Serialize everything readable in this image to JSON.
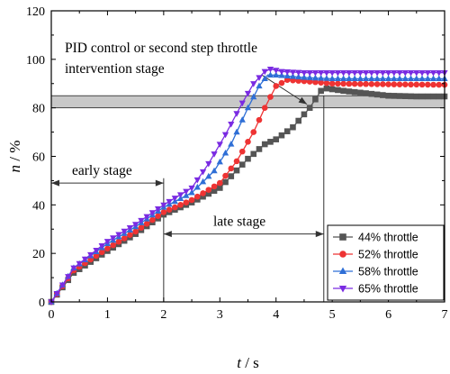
{
  "chart_data": {
    "type": "line",
    "xlabel": {
      "var": "t",
      "unit": " / s"
    },
    "ylabel": {
      "var": "n",
      "unit": " / %"
    },
    "xlim": [
      0,
      7
    ],
    "ylim": [
      0,
      120
    ],
    "xticks": [
      0,
      1,
      2,
      3,
      4,
      5,
      6,
      7
    ],
    "yticks": [
      0,
      20,
      40,
      60,
      80,
      100,
      120
    ],
    "grid": false,
    "legend_position": "bottom-right",
    "band": {
      "y0": 80,
      "y1": 85,
      "color": "#c8c8c8"
    },
    "annotations": {
      "pid_line1": "PID control or second step throttle",
      "pid_line2": "intervention stage",
      "early": "early stage",
      "late": "late stage"
    },
    "stage_markers": {
      "early_end": 2.0,
      "late_end": 4.85
    },
    "series": [
      {
        "name": "44% throttle",
        "color": "#555555",
        "marker": "square",
        "x": [
          0,
          0.4,
          1.0,
          1.5,
          2.0,
          2.5,
          3.0,
          3.5,
          3.8,
          4.0,
          4.3,
          4.6,
          4.8,
          4.9,
          5.2,
          5.6,
          6.0,
          6.5,
          7.0
        ],
        "y": [
          0,
          12,
          21,
          28,
          36,
          41,
          47,
          59,
          65,
          67,
          72,
          80,
          87,
          88,
          87,
          86,
          85,
          84.7,
          84.7
        ]
      },
      {
        "name": "52% throttle",
        "color": "#ee3333",
        "marker": "circle",
        "x": [
          0,
          0.4,
          1.0,
          1.5,
          2.0,
          2.5,
          3.0,
          3.3,
          3.6,
          3.8,
          4.0,
          4.2,
          4.5,
          5.0,
          6.0,
          7.0
        ],
        "y": [
          0,
          13,
          22,
          29,
          37,
          42,
          49,
          58,
          70,
          80,
          89,
          91.5,
          91,
          90,
          89.7,
          89.5
        ]
      },
      {
        "name": "58% throttle",
        "color": "#2f6fd6",
        "marker": "triangle-up",
        "x": [
          0,
          0.4,
          1.0,
          1.5,
          2.0,
          2.5,
          2.9,
          3.2,
          3.5,
          3.7,
          3.85,
          4.0,
          4.5,
          5.0,
          6.0,
          7.0
        ],
        "y": [
          0,
          14,
          24,
          31,
          39,
          45,
          54,
          65,
          80,
          89,
          93.5,
          93.5,
          92.5,
          92,
          92,
          92
        ]
      },
      {
        "name": "65% throttle",
        "color": "#7a2be2",
        "marker": "triangle-down",
        "x": [
          0,
          0.4,
          1.0,
          1.5,
          2.0,
          2.5,
          2.8,
          3.1,
          3.4,
          3.6,
          3.8,
          3.9,
          4.1,
          4.5,
          5.0,
          6.0,
          7.0
        ],
        "y": [
          0,
          14,
          25,
          32,
          40,
          47,
          57,
          69,
          82,
          90,
          95,
          96,
          95,
          94.5,
          94.5,
          94.5,
          94.5
        ]
      }
    ]
  }
}
